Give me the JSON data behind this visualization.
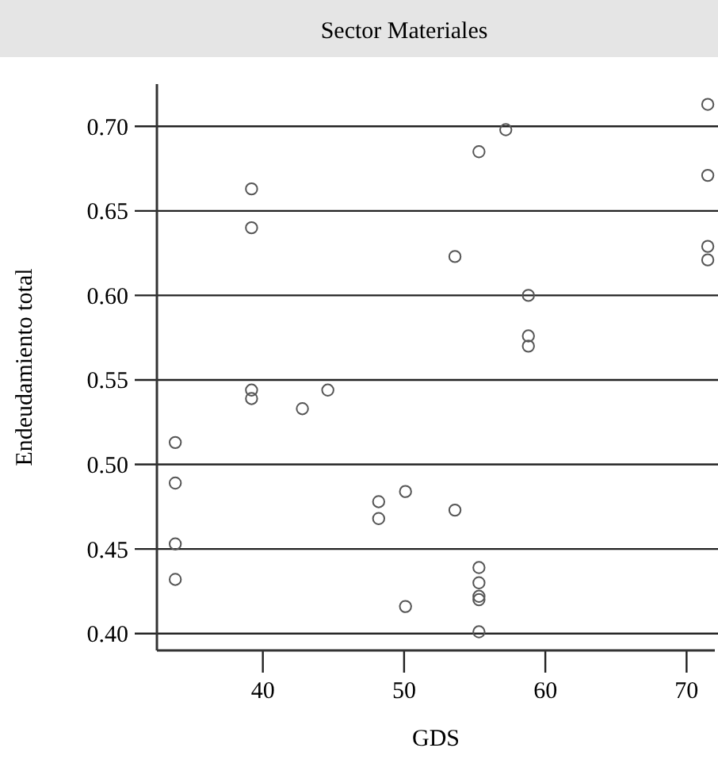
{
  "chart_data": {
    "type": "scatter",
    "title": "Sector Materiales",
    "xlabel": "GDS",
    "ylabel": "Endeudamiento total",
    "x": [
      33.8,
      33.8,
      33.8,
      33.8,
      39.2,
      39.2,
      39.2,
      39.2,
      42.8,
      44.6,
      48.2,
      48.2,
      50.1,
      50.1,
      53.6,
      53.6,
      57.2,
      55.3,
      71.5,
      71.5,
      71.5,
      71.5,
      58.8,
      58.8,
      58.8,
      55.3,
      55.3,
      55.3,
      55.3,
      55.3
    ],
    "values": [
      0.513,
      0.489,
      0.453,
      0.432,
      0.663,
      0.64,
      0.544,
      0.539,
      0.533,
      0.544,
      0.478,
      0.468,
      0.484,
      0.416,
      0.473,
      0.623,
      0.698,
      0.685,
      0.713,
      0.671,
      0.629,
      0.621,
      0.6,
      0.576,
      0.57,
      0.439,
      0.43,
      0.422,
      0.42,
      0.401
    ],
    "color": "#555555",
    "marker": "circle",
    "grid": "y",
    "xlim": [
      32.5,
      72
    ],
    "xticks": [
      40,
      50,
      60,
      70
    ],
    "ylim": [
      0.39,
      0.725
    ],
    "yticks": [
      {
        "value": 0.4,
        "label": "0.40"
      },
      {
        "value": 0.45,
        "label": "0.45"
      },
      {
        "value": 0.5,
        "label": "0.50"
      },
      {
        "value": 0.55,
        "label": "0.55"
      },
      {
        "value": 0.6,
        "label": "0.60"
      },
      {
        "value": 0.65,
        "label": "0.65"
      },
      {
        "value": 0.7,
        "label": "0.70"
      }
    ]
  }
}
